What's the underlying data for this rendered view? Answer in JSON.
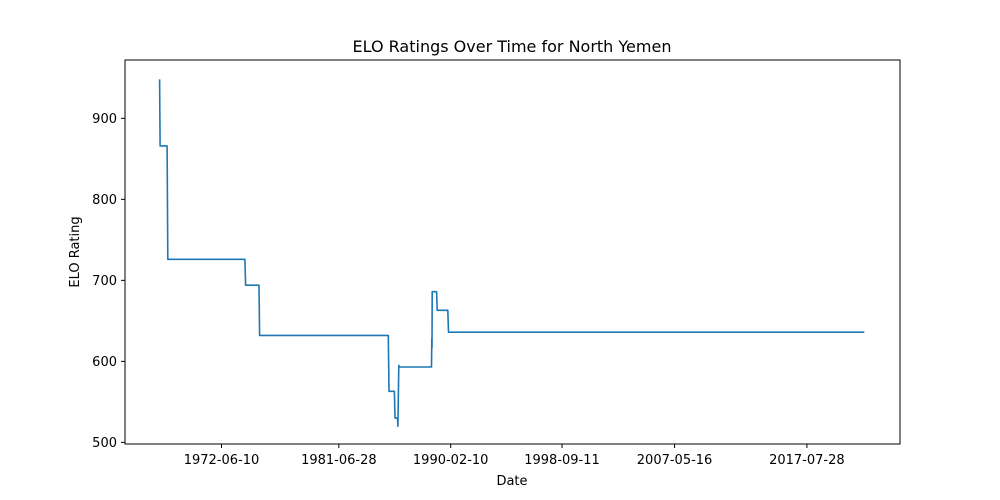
{
  "chart_data": {
    "type": "line",
    "title": "ELO Ratings Over Time for North Yemen",
    "xlabel": "Date",
    "ylabel": "ELO Rating",
    "xlim": [
      "1965-01-01",
      "2024-10-01"
    ],
    "ylim": [
      498,
      972
    ],
    "grid": false,
    "x_ticks": [
      "1972-06-10",
      "1981-06-28",
      "1990-02-10",
      "1998-09-11",
      "2007-05-16",
      "2017-07-28"
    ],
    "y_ticks": [
      500,
      600,
      700,
      800,
      900
    ],
    "series": [
      {
        "color": "#1f77b4",
        "points": [
          [
            "1967-09-01",
            948
          ],
          [
            "1967-09-15",
            866
          ],
          [
            "1968-04-01",
            866
          ],
          [
            "1968-04-20",
            726
          ],
          [
            "1974-04-01",
            726
          ],
          [
            "1974-04-20",
            694
          ],
          [
            "1975-05-01",
            694
          ],
          [
            "1975-05-20",
            632
          ],
          [
            "1985-04-20",
            632
          ],
          [
            "1985-05-10",
            563
          ],
          [
            "1985-10-10",
            563
          ],
          [
            "1985-10-25",
            530
          ],
          [
            "1986-01-05",
            530
          ],
          [
            "1986-01-15",
            520
          ],
          [
            "1986-02-10",
            595
          ],
          [
            "1986-02-25",
            593
          ],
          [
            "1988-08-20",
            593
          ],
          [
            "1988-08-28",
            628
          ],
          [
            "1988-09-02",
            617
          ],
          [
            "1988-09-08",
            686
          ],
          [
            "1989-01-10",
            686
          ],
          [
            "1989-01-25",
            663
          ],
          [
            "1989-11-20",
            663
          ],
          [
            "1989-12-10",
            636
          ],
          [
            "2022-01-01",
            636
          ]
        ]
      }
    ]
  }
}
